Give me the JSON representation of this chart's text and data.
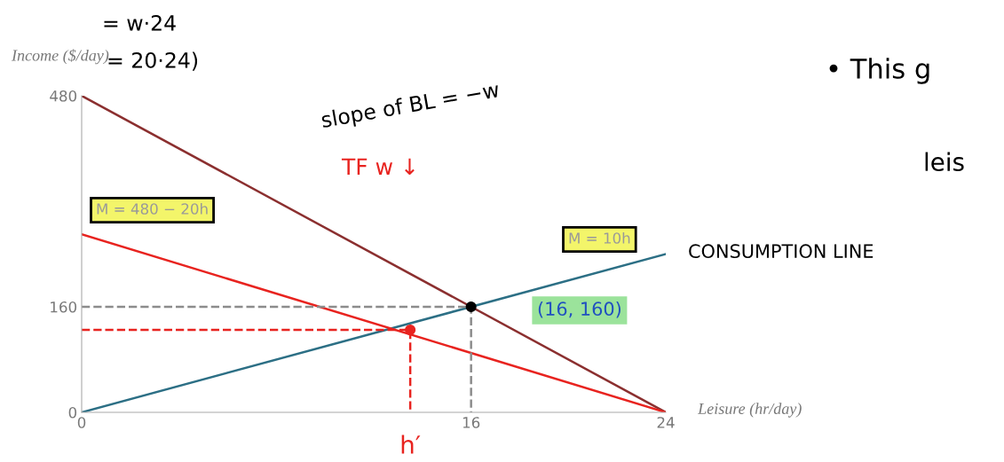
{
  "chart_data": {
    "type": "line",
    "xlabel": "Leisure (hr/day)",
    "ylabel": "Income ($/day)",
    "xlim": [
      0,
      24
    ],
    "ylim": [
      0,
      480
    ],
    "xticks": [
      0,
      16,
      24
    ],
    "yticks": [
      0,
      160,
      480
    ],
    "grid": false,
    "legend": false,
    "marker": "none",
    "line_style": "solid",
    "series": [
      {
        "color": "#8b2f2f",
        "x": [
          0,
          24
        ],
        "values": [
          480,
          0
        ]
      },
      {
        "color": "#2c6f85",
        "x": [
          0,
          24
        ],
        "values": [
          0,
          240
        ]
      },
      {
        "color": "#e8231f",
        "x": [
          0,
          24
        ],
        "values": [
          270,
          0
        ]
      },
      {
        "type": "line",
        "color": "#8c8c8c",
        "line_style": "dashed",
        "x": [
          0,
          16,
          16
        ],
        "values": [
          160,
          160,
          0
        ]
      },
      {
        "type": "line",
        "color": "#e8231f",
        "line_style": "dashed",
        "x": [
          0,
          13.5,
          13.5
        ],
        "values": [
          125,
          125,
          0
        ]
      },
      {
        "type": "scatter",
        "color": "#000000",
        "marker": "circle",
        "x": [
          16
        ],
        "values": [
          160
        ]
      },
      {
        "type": "scatter",
        "color": "#e8231f",
        "marker": "circle",
        "x": [
          13.5
        ],
        "values": [
          125
        ]
      }
    ],
    "annotations": [
      {
        "text": "h′",
        "x": 13.5,
        "y": 0
      },
      "M = 480 − 20h",
      "M = 10h",
      "(16, 160)",
      "= w·24",
      "= 20·24)",
      "slope of BL = −w",
      "TF w ↓",
      "CONSUMPTION LINE",
      "• This g",
      "leis"
    ]
  }
}
